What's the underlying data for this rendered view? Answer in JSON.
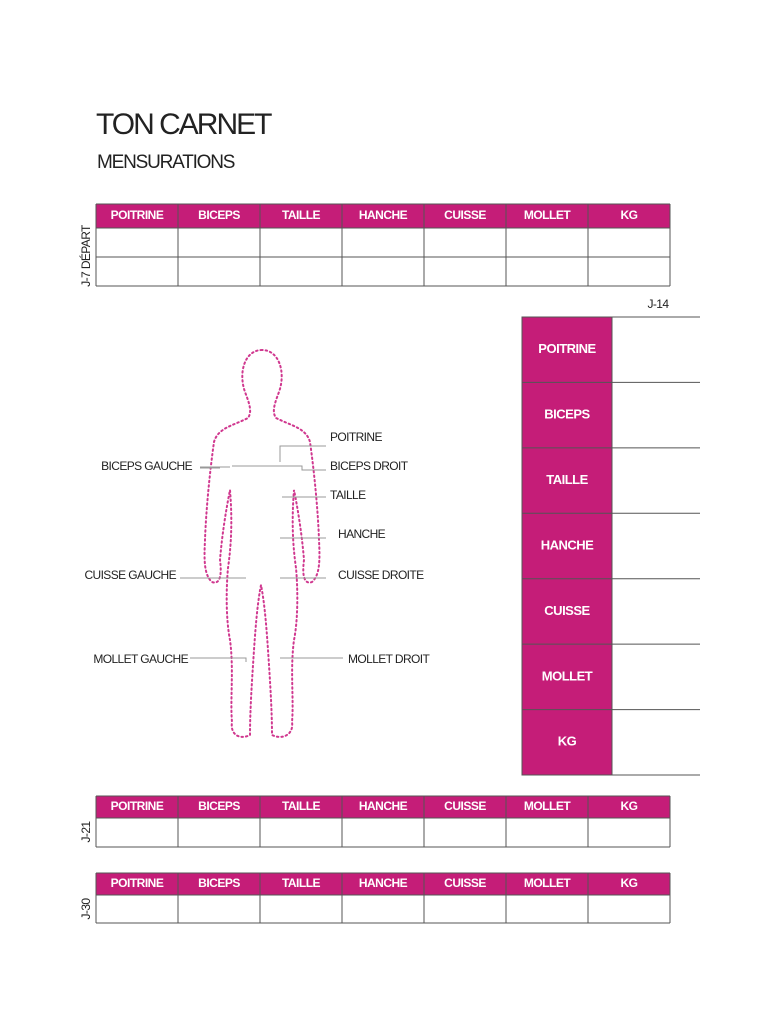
{
  "header": {
    "title": "TON CARNET",
    "subtitle": "MENSURATIONS"
  },
  "tables": [
    {
      "label": "J-7 DÉPART",
      "columns": [
        "POITRINE",
        "BICEPS",
        "TAILLE",
        "HANCHE",
        "CUISSE",
        "MOLLET",
        "KG"
      ]
    },
    {
      "label": "J-14",
      "columns": [
        "POITRINE",
        "BICEPS",
        "TAILLE",
        "HANCHE",
        "CUISSE",
        "MOLLET",
        "KG"
      ]
    },
    {
      "label": "J-21",
      "columns": [
        "POITRINE",
        "BICEPS",
        "TAILLE",
        "HANCHE",
        "CUISSE",
        "MOLLET",
        "KG"
      ]
    },
    {
      "label": "J-30",
      "columns": [
        "POITRINE",
        "BICEPS",
        "TAILLE",
        "HANCHE",
        "CUISSE",
        "MOLLET",
        "KG"
      ]
    }
  ],
  "figure": {
    "labels": [
      "POITRINE",
      "BICEPS DROIT",
      "TAILLE",
      "HANCHE",
      "CUISSE DROITE",
      "MOLLET DROIT",
      "BICEPS GAUCHE",
      "CUISSE GAUCHE",
      "MOLLET GAUCHE"
    ]
  }
}
